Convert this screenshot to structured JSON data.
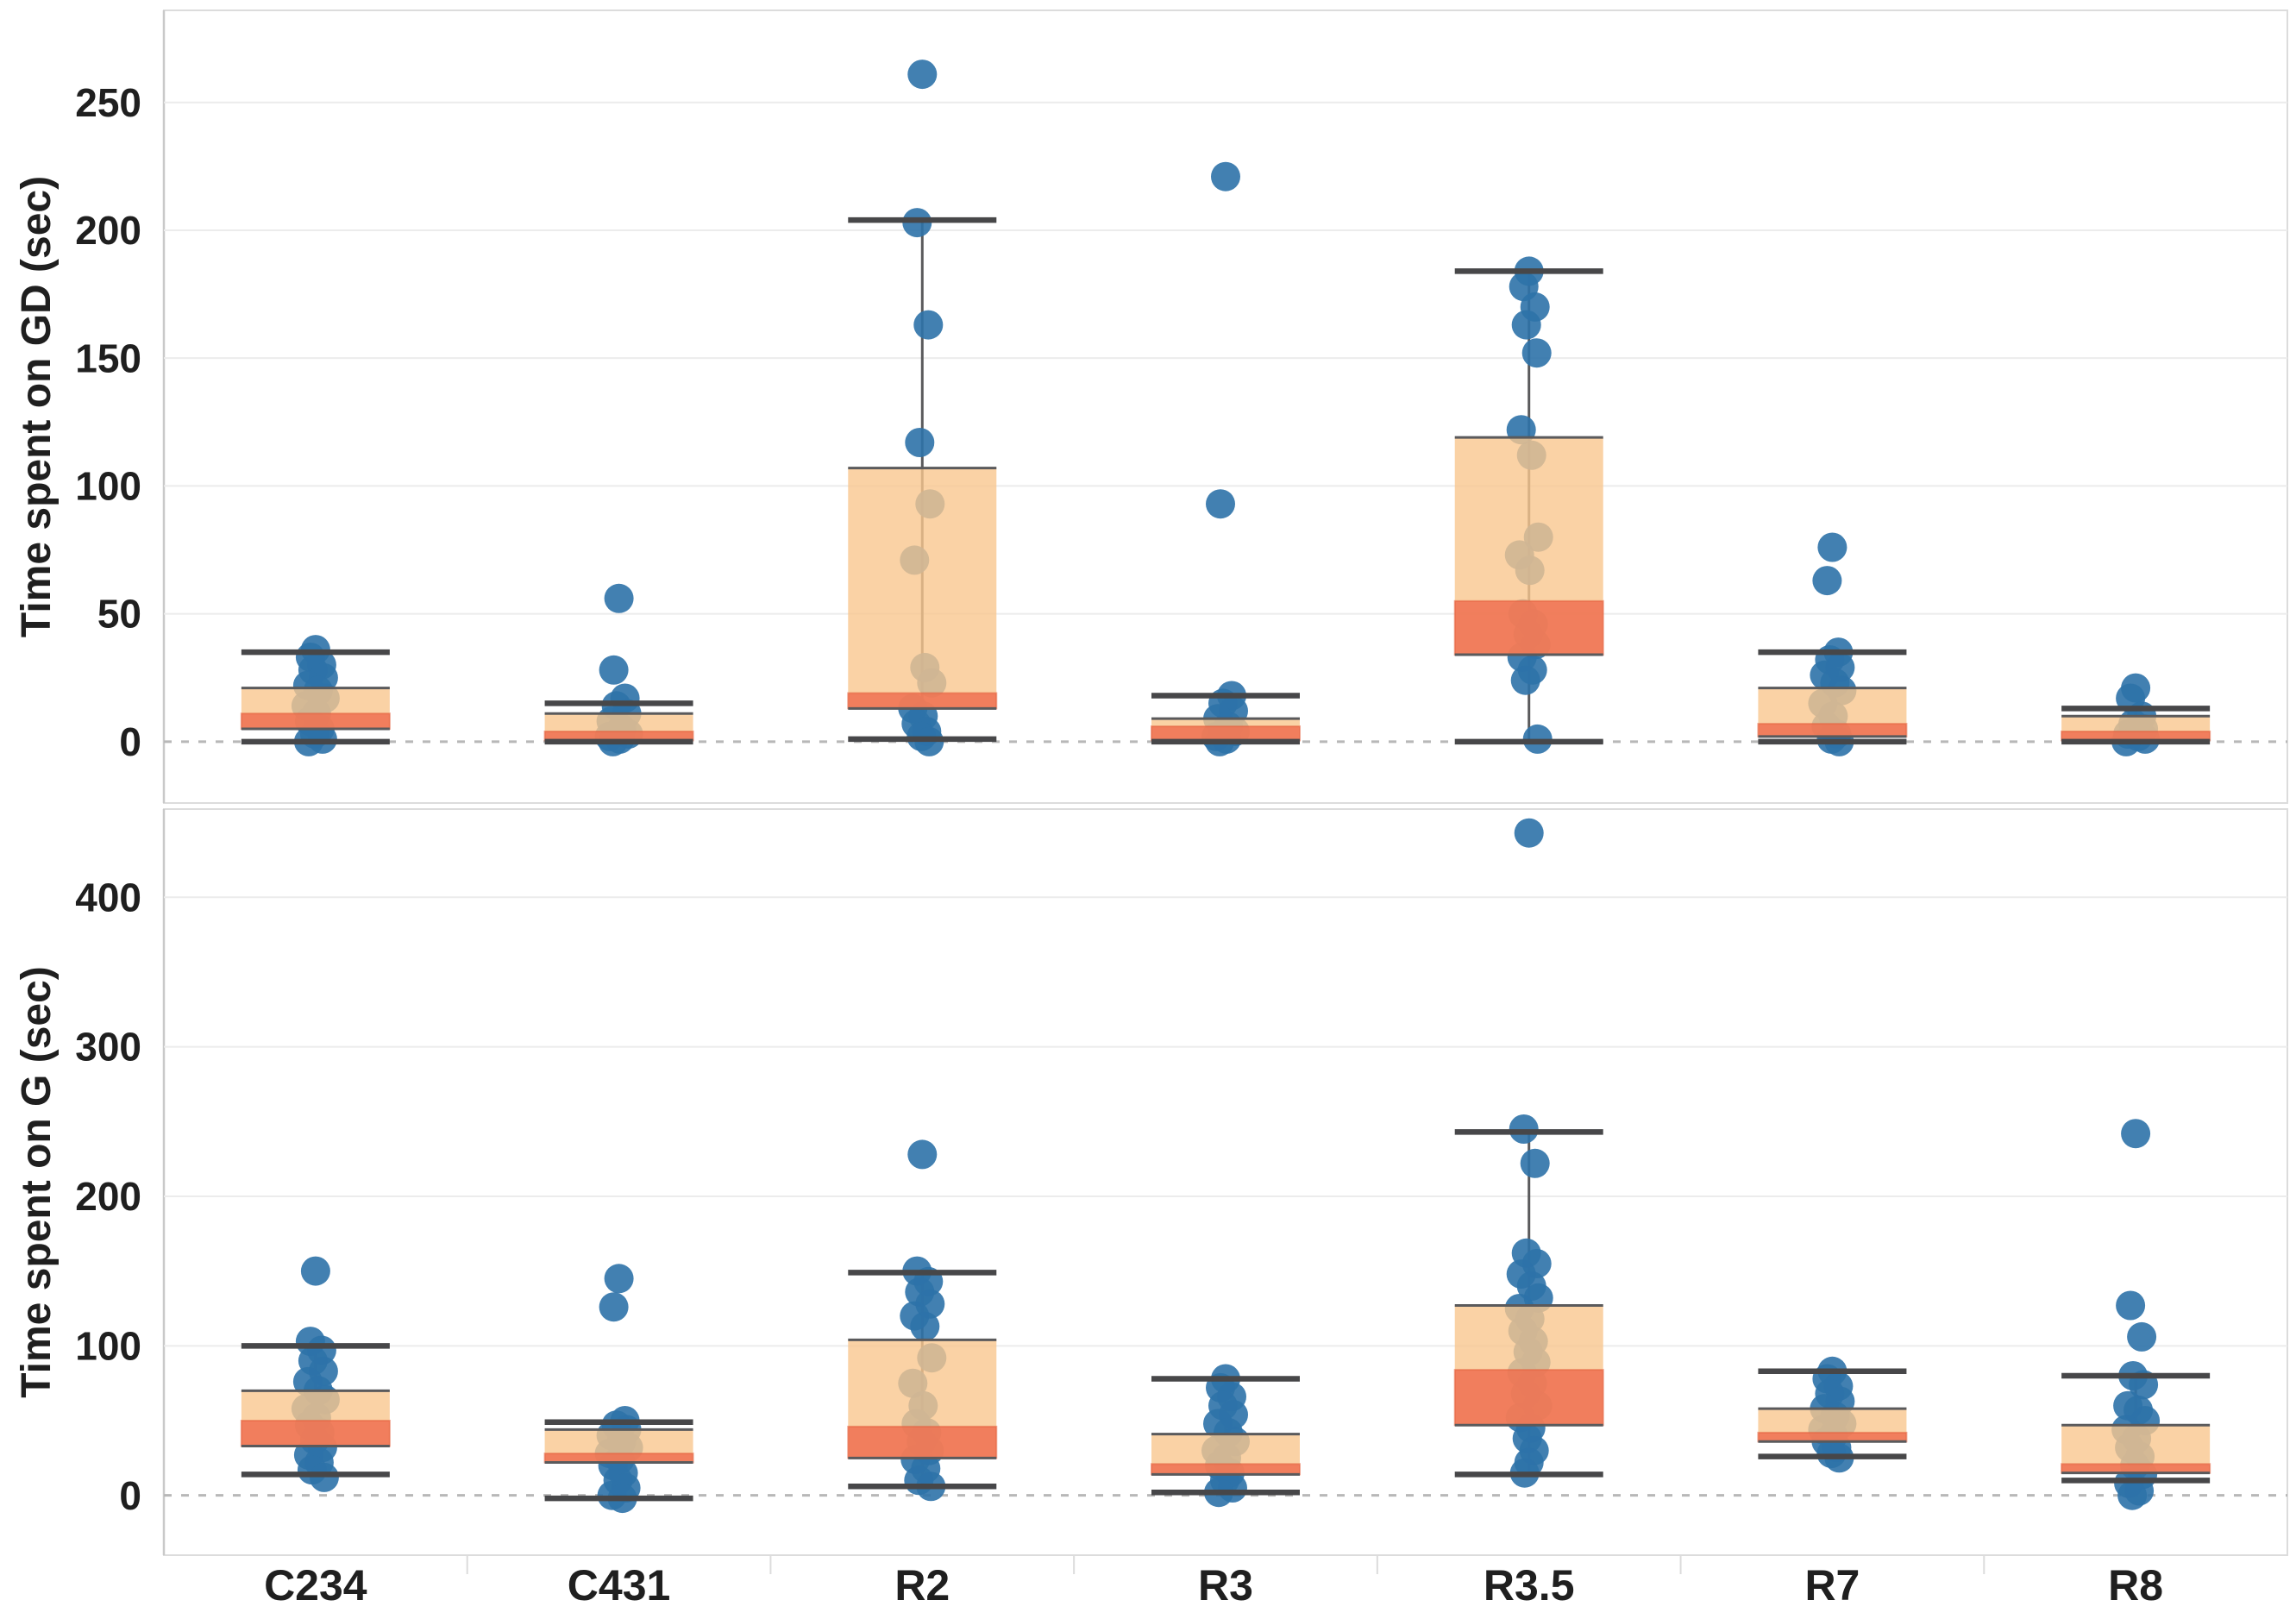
{
  "chart_data": {
    "type": "boxplot",
    "subtype": "box-with-jittered-points",
    "orientation": "vertical",
    "grid": true,
    "legend": null,
    "categories": [
      "C234",
      "C431",
      "R2",
      "R3",
      "R3.5",
      "R7",
      "R8"
    ],
    "panels": [
      {
        "id": "gd",
        "ylabel": "Time spent on GD (sec)",
        "yticks": [
          0,
          50,
          100,
          150,
          200,
          250
        ],
        "ylim": [
          -24,
          286
        ],
        "zero_line_dashed": true,
        "series": [
          {
            "category": "C234",
            "box": {
              "min": 0,
              "q1": 5,
              "median": 8,
              "q3": 21,
              "max": 35
            },
            "median_band": [
              5,
              11
            ],
            "points": [
              36,
              33,
              30,
              28,
              25,
              22,
              20,
              17,
              14,
              11,
              8,
              5,
              3,
              1,
              0
            ]
          },
          {
            "category": "C431",
            "box": {
              "min": 0,
              "q1": 0.5,
              "median": 2.5,
              "q3": 11,
              "max": 15
            },
            "median_band": [
              0.5,
              4
            ],
            "points": [
              56,
              28,
              17,
              14,
              11,
              8,
              5,
              3,
              2,
              1,
              0
            ]
          },
          {
            "category": "R2",
            "box": {
              "min": 1,
              "q1": 13,
              "median": 16,
              "q3": 107,
              "max": 204
            },
            "median_band": [
              13,
              19
            ],
            "points": [
              261,
              203,
              163,
              117,
              93,
              71,
              29,
              23,
              13,
              10,
              7,
              4,
              2,
              0
            ]
          },
          {
            "category": "R3",
            "box": {
              "min": 0,
              "q1": 0.5,
              "median": 3,
              "q3": 9,
              "max": 18
            },
            "median_band": [
              0.5,
              6
            ],
            "points": [
              221,
              93,
              18,
              15,
              12,
              9,
              6,
              4,
              2,
              1,
              0
            ]
          },
          {
            "category": "R3.5",
            "box": {
              "min": 0,
              "q1": 34,
              "median": 45,
              "q3": 119,
              "max": 184
            },
            "median_band": [
              34,
              55
            ],
            "points": [
              184,
              178,
              170,
              163,
              152,
              122,
              112,
              80,
              73,
              67,
              50,
              46,
              42,
              38,
              33,
              28,
              24,
              1
            ]
          },
          {
            "category": "R7",
            "box": {
              "min": 0,
              "q1": 2,
              "median": 4.5,
              "q3": 21,
              "max": 35
            },
            "median_band": [
              2,
              7
            ],
            "points": [
              76,
              63,
              35,
              32,
              29,
              26,
              23,
              20,
              15,
              10,
              6,
              3,
              1,
              0
            ]
          },
          {
            "category": "R8",
            "box": {
              "min": 0,
              "q1": 0.5,
              "median": 2,
              "q3": 10,
              "max": 13
            },
            "median_band": [
              0.5,
              4
            ],
            "points": [
              21,
              17,
              10,
              7,
              5,
              3,
              2,
              1,
              0
            ]
          }
        ]
      },
      {
        "id": "g",
        "ylabel": "Time spent on G (sec)",
        "yticks": [
          0,
          100,
          200,
          300,
          400
        ],
        "ylim": [
          -40,
          459
        ],
        "zero_line_dashed": true,
        "series": [
          {
            "category": "C234",
            "box": {
              "min": 14,
              "q1": 33,
              "median": 41,
              "q3": 70,
              "max": 100
            },
            "median_band": [
              33,
              50
            ],
            "points": [
              150,
              103,
              97,
              90,
              83,
              76,
              70,
              64,
              58,
              52,
              47,
              42,
              37,
              32,
              27,
              22,
              17,
              12
            ]
          },
          {
            "category": "C431",
            "box": {
              "min": -2,
              "q1": 22,
              "median": 25,
              "q3": 44,
              "max": 49
            },
            "median_band": [
              22,
              28
            ],
            "points": [
              145,
              126,
              50,
              47,
              44,
              40,
              36,
              32,
              28,
              24,
              20,
              15,
              10,
              5,
              0,
              -2
            ]
          },
          {
            "category": "R2",
            "box": {
              "min": 6,
              "q1": 25,
              "median": 35,
              "q3": 104,
              "max": 149
            },
            "median_band": [
              25,
              46
            ],
            "points": [
              228,
              150,
              143,
              136,
              128,
              120,
              113,
              92,
              75,
              60,
              48,
              42,
              36,
              30,
              24,
              18,
              10,
              6
            ]
          },
          {
            "category": "R3",
            "box": {
              "min": 2,
              "q1": 14,
              "median": 17,
              "q3": 41,
              "max": 78
            },
            "median_band": [
              14,
              21
            ],
            "points": [
              78,
              72,
              66,
              60,
              54,
              48,
              42,
              36,
              30,
              25,
              20,
              15,
              10,
              5,
              2
            ]
          },
          {
            "category": "R3.5",
            "box": {
              "min": 14,
              "q1": 47,
              "median": 65,
              "q3": 127,
              "max": 243
            },
            "median_band": [
              47,
              84
            ],
            "points": [
              443,
              245,
              222,
              162,
              155,
              148,
              140,
              132,
              125,
              118,
              110,
              103,
              96,
              89,
              82,
              75,
              68,
              60,
              52,
              45,
              38,
              30,
              22,
              15
            ]
          },
          {
            "category": "R7",
            "box": {
              "min": 26,
              "q1": 36,
              "median": 39,
              "q3": 58,
              "max": 83
            },
            "median_band": [
              36,
              42
            ],
            "points": [
              83,
              78,
              73,
              68,
              63,
              58,
              53,
              48,
              44,
              40,
              36,
              32,
              28,
              25
            ]
          },
          {
            "category": "R8",
            "box": {
              "min": 10,
              "q1": 15,
              "median": 18,
              "q3": 47,
              "max": 80
            },
            "median_band": [
              15,
              21
            ],
            "points": [
              242,
              127,
              106,
              80,
              74,
              60,
              57,
              50,
              44,
              38,
              32,
              26,
              20,
              14,
              8,
              3,
              0
            ]
          }
        ]
      }
    ],
    "colors": {
      "point": "#2E72A8",
      "box_fill": "#F9C78F",
      "median_band": "#EF7050",
      "median_band_edge": "#E4603E",
      "box_edge": "#5A5A5C",
      "whisker": "#474749",
      "gridline": "#ECECEC",
      "zero_line": "#B8B8B8",
      "panel_border": "#DCDCDC",
      "axis_line": "#C9C9C9",
      "text": "#1F1F1F",
      "background": "#FFFFFF"
    }
  }
}
